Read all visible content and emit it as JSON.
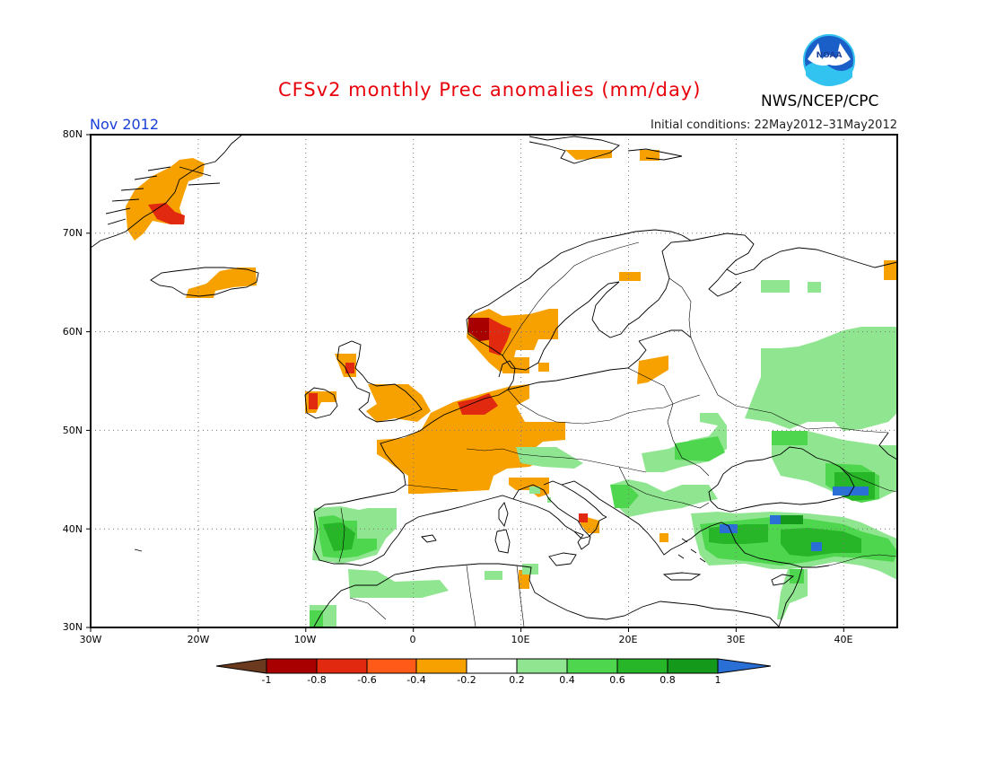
{
  "title": "CFSv2 monthly Prec anomalies (mm/day)",
  "valid_date": "Nov 2012",
  "initial_conditions": "Initial conditions: 22May2012–31May2012",
  "agency": "NWS/NCEP/CPC",
  "logo_text": "NOAA",
  "lat_labels": [
    "80N",
    "70N",
    "60N",
    "50N",
    "40N",
    "30N"
  ],
  "lon_labels": [
    "30W",
    "20W",
    "10W",
    "0",
    "10E",
    "20E",
    "30E",
    "40E"
  ],
  "colorbar": {
    "labels": [
      "-1",
      "-0.8",
      "-0.6",
      "-0.4",
      "-0.2",
      "0.2",
      "0.4",
      "0.6",
      "0.8",
      "1"
    ],
    "colors": [
      "#6b3a1e",
      "#a80000",
      "#e0290e",
      "#ff5a17",
      "#f7a100",
      "#ffffff",
      "#90e690",
      "#4fd64f",
      "#27b627",
      "#14991a",
      "#2a6fd6"
    ]
  },
  "colors": {
    "title": "#e8000b",
    "date": "#1a3fd6",
    "orange": "#f7a100",
    "red_orange": "#ff5a17",
    "red": "#e0290e",
    "dark_red": "#a80000",
    "light_green": "#90e690",
    "green": "#4fd64f",
    "mid_green": "#27b627",
    "dark_green": "#14991a",
    "blue": "#2a6fd6"
  }
}
